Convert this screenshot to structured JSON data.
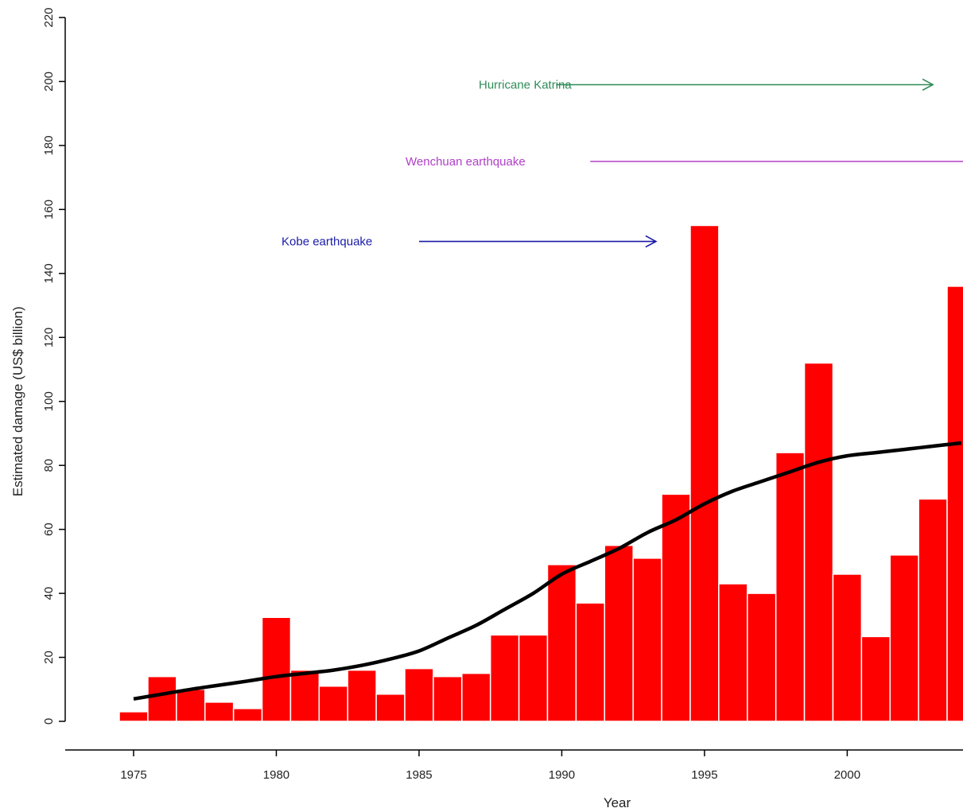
{
  "chart_data": {
    "type": "bar",
    "xlabel": "Year",
    "ylabel": "Estimated damage (US$ billion)",
    "xlim": [
      1972.7,
      2004.3
    ],
    "ylim": [
      -9,
      220
    ],
    "x_ticks": [
      1975,
      1980,
      1985,
      1990,
      1995,
      2000
    ],
    "y_ticks": [
      0,
      20,
      40,
      60,
      80,
      100,
      120,
      140,
      160,
      180,
      200,
      220
    ],
    "bar_color": "#ff0000",
    "bar_border_color": "#ffffff",
    "series": [
      {
        "type": "bar",
        "x": [
          1975,
          1976,
          1977,
          1978,
          1979,
          1980,
          1981,
          1982,
          1983,
          1984,
          1985,
          1986,
          1987,
          1988,
          1989,
          1990,
          1991,
          1992,
          1993,
          1994,
          1995,
          1996,
          1997,
          1998,
          1999,
          2000,
          2001,
          2002,
          2003,
          2004
        ],
        "values": [
          3,
          14,
          10,
          6,
          4,
          32.5,
          16,
          11,
          16,
          8.5,
          16.5,
          14,
          15,
          27,
          27,
          49,
          37,
          55,
          51,
          71,
          155,
          43,
          40,
          84,
          112,
          46,
          26.5,
          52,
          69.5,
          136
        ]
      },
      {
        "type": "line",
        "color": "#000000",
        "x": [
          1975,
          1976,
          1977,
          1978,
          1979,
          1980,
          1981,
          1982,
          1983,
          1984,
          1985,
          1986,
          1987,
          1988,
          1989,
          1990,
          1991,
          1992,
          1993,
          1994,
          1995,
          1996,
          1997,
          1998,
          1999,
          2000,
          2001,
          2002,
          2003,
          2004
        ],
        "values": [
          7,
          8.5,
          10,
          11.3,
          12.6,
          14,
          15,
          16,
          17.5,
          19.5,
          22,
          26,
          30,
          35,
          40,
          46,
          50,
          54,
          59,
          63,
          68,
          72,
          75,
          78,
          81,
          83,
          84,
          85,
          86,
          87
        ]
      }
    ],
    "annotations": [
      {
        "text": "Hurricane Katrina",
        "color": "#2e8b57",
        "y": 199,
        "arrow_from_x": 1989.8,
        "arrow_to_x": 2003.0
      },
      {
        "text": "Wenchuan earthquake",
        "color": "#b03fc8",
        "y": 175,
        "arrow_from_x": 1991.0,
        "arrow_to_x": 2004.3
      },
      {
        "text": "Kobe earthquake",
        "color": "#1a1aa8",
        "y": 150,
        "arrow_from_x": 1985.0,
        "arrow_to_x": 1993.3
      }
    ]
  }
}
